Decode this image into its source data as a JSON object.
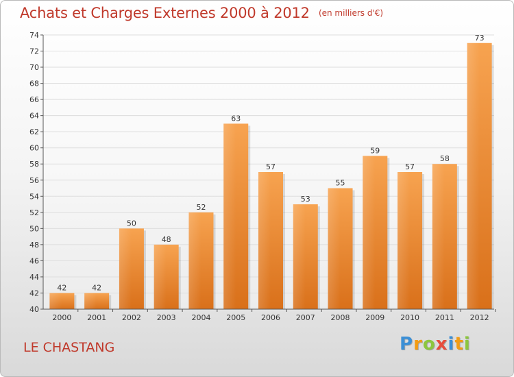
{
  "header": {
    "title": "Achats et Charges Externes 2000 à 2012",
    "unit": "(en milliers d'€)"
  },
  "location": "LE CHASTANG",
  "logo": {
    "text": "Proxiti",
    "letters": [
      {
        "ch": "P",
        "color": "#3b8fd6"
      },
      {
        "ch": "r",
        "color": "#f39c12"
      },
      {
        "ch": "o",
        "color": "#8cc63f"
      },
      {
        "ch": "x",
        "color": "#e74c3c"
      },
      {
        "ch": "i",
        "color": "#3b8fd6"
      },
      {
        "ch": "t",
        "color": "#f39c12"
      },
      {
        "ch": "i",
        "color": "#8cc63f"
      }
    ]
  },
  "colors": {
    "title": "#c0392b",
    "bar_top": "#f7a350",
    "bar_bottom": "#d9701a",
    "grid": "#dddddd",
    "axis": "#555555"
  },
  "chart_data": {
    "type": "bar",
    "categories": [
      "2000",
      "2001",
      "2002",
      "2003",
      "2004",
      "2005",
      "2006",
      "2007",
      "2008",
      "2009",
      "2010",
      "2011",
      "2012"
    ],
    "values": [
      42,
      42,
      50,
      48,
      52,
      63,
      57,
      53,
      55,
      59,
      57,
      58,
      73
    ],
    "data_labels": [
      "42",
      "42",
      "50",
      "48",
      "52",
      "63",
      "57",
      "53",
      "55",
      "59",
      "57",
      "58",
      "73"
    ],
    "ylim": [
      40,
      74
    ],
    "yticks": [
      40,
      42,
      44,
      46,
      48,
      50,
      52,
      54,
      56,
      58,
      60,
      62,
      64,
      66,
      68,
      70,
      72,
      74
    ],
    "grid": true
  }
}
